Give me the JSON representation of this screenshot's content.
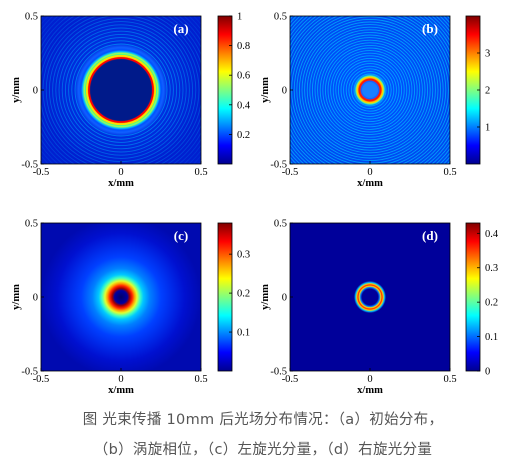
{
  "colors": {
    "axis": "#000000",
    "panel_label": "#ffffff",
    "caption": "#555555"
  },
  "caption": {
    "line1": "图 光束传播 10mm 后光场分布情况：（a）初始分布，",
    "line2": "（b）涡旋相位，（c）左旋光分量，（d）右旋光分量"
  },
  "chart_data": [
    {
      "type": "heatmap",
      "panel_label": "(a)",
      "xlabel": "x/mm",
      "ylabel": "y/mm",
      "xlim": [
        -0.5,
        0.5
      ],
      "ylim": [
        -0.5,
        0.5
      ],
      "xticks": [
        "-0.5",
        "0",
        "0.5"
      ],
      "yticks": [
        "-0.5",
        "0",
        "0.5"
      ],
      "colormap": "jet",
      "colorbar": {
        "range": [
          0,
          1
        ],
        "ticks": [
          "0.2",
          "0.4",
          "0.6",
          "0.8",
          "1"
        ]
      },
      "pattern": "flat-top ring, dark center, outer diffraction fringes",
      "ring_radius_mm": 0.2,
      "peak": 1
    },
    {
      "type": "heatmap",
      "panel_label": "(b)",
      "xlabel": "x/mm",
      "ylabel": "y/mm",
      "xlim": [
        -0.5,
        0.5
      ],
      "ylim": [
        -0.5,
        0.5
      ],
      "xticks": [
        "-0.5",
        "0",
        "0.5"
      ],
      "yticks": [
        "-0.5",
        "0",
        "0.5"
      ],
      "colormap": "jet",
      "colorbar": {
        "range": [
          0,
          4
        ],
        "ticks": [
          "1",
          "2",
          "3"
        ]
      },
      "pattern": "concentric fringes over field, bright ring near center",
      "ring_radius_mm": 0.05,
      "peak": 4
    },
    {
      "type": "heatmap",
      "panel_label": "(c)",
      "xlabel": "x/mm",
      "ylabel": "y/mm",
      "xlim": [
        -0.5,
        0.5
      ],
      "ylim": [
        -0.5,
        0.5
      ],
      "xticks": [
        "-0.5",
        "0",
        "0.5"
      ],
      "yticks": [
        "-0.5",
        "0",
        "0.5"
      ],
      "colormap": "jet",
      "colorbar": {
        "range": [
          0,
          0.38
        ],
        "ticks": [
          "0.1",
          "0.2",
          "0.3"
        ]
      },
      "pattern": "donut beam with dark center and glow",
      "ring_radius_mm": 0.055,
      "peak": 0.38
    },
    {
      "type": "heatmap",
      "panel_label": "(d)",
      "xlabel": "x/mm",
      "ylabel": "y/mm",
      "xlim": [
        -0.5,
        0.5
      ],
      "ylim": [
        -0.5,
        0.5
      ],
      "xticks": [
        "-0.5",
        "0",
        "0.5"
      ],
      "yticks": [
        "-0.5",
        "0",
        "0.5"
      ],
      "colormap": "jet",
      "colorbar": {
        "range": [
          0,
          0.43
        ],
        "ticks": [
          "0",
          "0.1",
          "0.2",
          "0.3",
          "0.4"
        ]
      },
      "pattern": "thin bright ring",
      "ring_radius_mm": 0.055,
      "peak": 0.43
    }
  ]
}
